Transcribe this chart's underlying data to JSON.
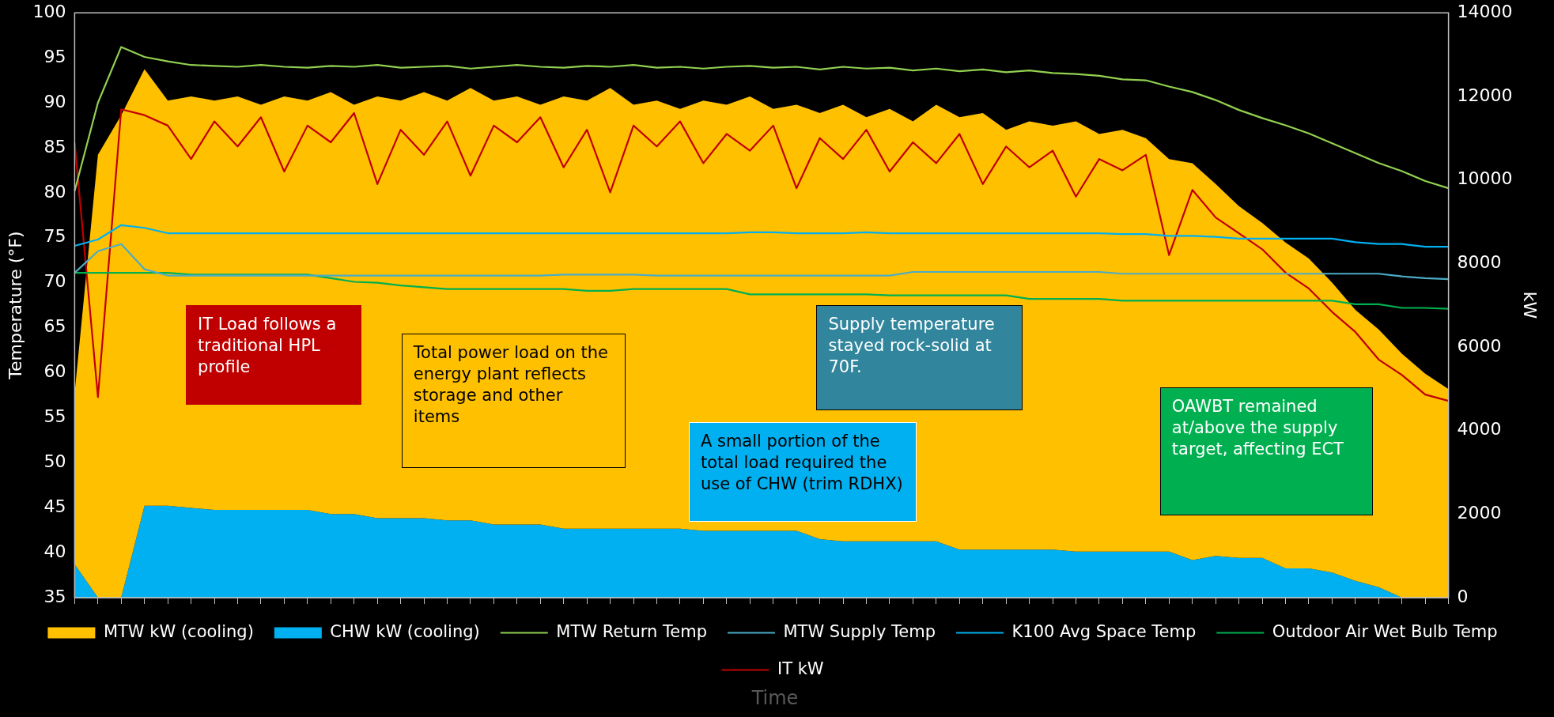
{
  "chart_data": {
    "type": "line",
    "xlabel": "Time",
    "ylabel": "Temperature (°F)",
    "y2label": "kW",
    "categories": [
      null,
      null,
      null,
      null,
      null,
      null,
      null,
      null,
      null,
      null,
      null,
      null,
      null,
      null,
      null,
      null,
      null,
      null,
      null,
      null,
      null,
      null,
      null,
      null,
      null,
      null,
      null,
      null,
      null,
      null,
      null,
      null,
      null,
      null,
      null,
      null,
      null,
      null,
      null,
      null,
      null,
      null,
      null,
      null,
      null,
      null,
      null,
      null,
      null,
      null,
      null,
      null,
      null,
      null,
      null,
      null,
      null,
      null,
      null,
      null
    ],
    "ylim": [
      35,
      100
    ],
    "yticks": [
      35,
      40,
      45,
      50,
      55,
      60,
      65,
      70,
      75,
      80,
      85,
      90,
      95,
      100
    ],
    "y2lim": [
      0,
      14000
    ],
    "y2ticks": [
      0,
      2000,
      4000,
      6000,
      8000,
      10000,
      12000,
      14000
    ],
    "legend": "bottom",
    "tick_labels": "y",
    "series": [
      {
        "name": "MTW kW (cooling)",
        "type": "area",
        "axis": "y2",
        "color": "#ffc000",
        "values": [
          4900,
          10600,
          11550,
          12650,
          11900,
          12000,
          11900,
          12000,
          11800,
          12000,
          11900,
          12100,
          11800,
          12000,
          11900,
          12100,
          11900,
          12200,
          11900,
          12000,
          11800,
          12000,
          11900,
          12200,
          11800,
          11900,
          11700,
          11900,
          11800,
          12000,
          11700,
          11800,
          11600,
          11800,
          11500,
          11700,
          11400,
          11800,
          11500,
          11600,
          11200,
          11400,
          11300,
          11400,
          11100,
          11200,
          11000,
          10500,
          10400,
          9900,
          9370,
          8970,
          8500,
          8120,
          7540,
          6890,
          6420,
          5840,
          5360,
          4990
        ]
      },
      {
        "name": "CHW kW (cooling)",
        "type": "area",
        "axis": "y2",
        "color": "#00b0f0",
        "values": [
          800,
          0,
          0,
          2200,
          2200,
          2150,
          2100,
          2100,
          2100,
          2100,
          2100,
          2000,
          2000,
          1900,
          1900,
          1900,
          1850,
          1850,
          1750,
          1750,
          1750,
          1650,
          1650,
          1650,
          1650,
          1650,
          1650,
          1600,
          1600,
          1600,
          1600,
          1600,
          1400,
          1350,
          1350,
          1350,
          1350,
          1350,
          1150,
          1150,
          1150,
          1150,
          1150,
          1100,
          1100,
          1100,
          1100,
          1100,
          900,
          1000,
          950,
          950,
          700,
          700,
          600,
          400,
          250,
          0,
          0,
          0
        ]
      },
      {
        "name": "MTW Return Temp",
        "type": "line",
        "color": "#92d050",
        "values": [
          80.2,
          90,
          96.2,
          95.1,
          94.6,
          94.2,
          94.1,
          94.0,
          94.2,
          94.0,
          93.9,
          94.1,
          94.0,
          94.2,
          93.9,
          94.0,
          94.1,
          93.8,
          94.0,
          94.2,
          94.0,
          93.9,
          94.1,
          94.0,
          94.2,
          93.9,
          94.0,
          93.8,
          94.0,
          94.1,
          93.9,
          94.0,
          93.7,
          94.0,
          93.8,
          93.9,
          93.6,
          93.8,
          93.5,
          93.7,
          93.4,
          93.6,
          93.3,
          93.2,
          93.0,
          92.6,
          92.5,
          91.8,
          91.2,
          90.3,
          89.2,
          88.3,
          87.5,
          86.6,
          85.5,
          84.4,
          83.3,
          82.4,
          81.3,
          80.5
        ]
      },
      {
        "name": "MTW Supply Temp",
        "type": "line",
        "color": "#4bacc6",
        "values": [
          71.1,
          73.5,
          74.3,
          71.5,
          70.8,
          70.8,
          70.8,
          70.8,
          70.8,
          70.8,
          70.8,
          70.8,
          70.8,
          70.8,
          70.8,
          70.8,
          70.8,
          70.8,
          70.8,
          70.8,
          70.8,
          70.9,
          70.9,
          70.9,
          70.9,
          70.8,
          70.8,
          70.8,
          70.8,
          70.8,
          70.8,
          70.8,
          70.8,
          70.8,
          70.8,
          70.8,
          71.2,
          71.2,
          71.2,
          71.2,
          71.2,
          71.2,
          71.2,
          71.2,
          71.2,
          71.0,
          71.0,
          71.0,
          71.0,
          71.0,
          71.0,
          71.0,
          71.0,
          71.0,
          71.0,
          71.0,
          71.0,
          70.7,
          70.5,
          70.4
        ]
      },
      {
        "name": "K100 Avg Space Temp",
        "type": "line",
        "color": "#00b0f0",
        "values": [
          74.1,
          74.8,
          76.4,
          76.1,
          75.5,
          75.5,
          75.5,
          75.5,
          75.5,
          75.5,
          75.5,
          75.5,
          75.5,
          75.5,
          75.5,
          75.5,
          75.5,
          75.5,
          75.5,
          75.5,
          75.5,
          75.5,
          75.5,
          75.5,
          75.5,
          75.5,
          75.5,
          75.5,
          75.5,
          75.6,
          75.6,
          75.5,
          75.5,
          75.5,
          75.6,
          75.5,
          75.5,
          75.5,
          75.5,
          75.5,
          75.5,
          75.5,
          75.5,
          75.5,
          75.5,
          75.4,
          75.4,
          75.2,
          75.2,
          75.1,
          74.9,
          74.9,
          74.9,
          74.9,
          74.9,
          74.5,
          74.3,
          74.3,
          74.0,
          74.0
        ]
      },
      {
        "name": "Outdoor Air Wet Bulb Temp",
        "type": "line",
        "color": "#00b050",
        "values": [
          71.1,
          71.1,
          71.1,
          71.1,
          71.1,
          70.9,
          70.9,
          70.9,
          70.9,
          70.9,
          70.9,
          70.5,
          70.1,
          70.0,
          69.7,
          69.5,
          69.3,
          69.3,
          69.3,
          69.3,
          69.3,
          69.3,
          69.1,
          69.1,
          69.3,
          69.3,
          69.3,
          69.3,
          69.3,
          68.7,
          68.7,
          68.7,
          68.7,
          68.7,
          68.7,
          68.6,
          68.6,
          68.6,
          68.6,
          68.6,
          68.6,
          68.2,
          68.2,
          68.2,
          68.2,
          68.0,
          68.0,
          68.0,
          68.0,
          68.0,
          68.0,
          68.0,
          68.0,
          68.0,
          68.0,
          67.6,
          67.6,
          67.2,
          67.2,
          67.1
        ]
      },
      {
        "name": "IT kW",
        "type": "line",
        "axis": "y2",
        "color": "#c00000",
        "values": [
          10890,
          4800,
          11690,
          11550,
          11300,
          10500,
          11400,
          10800,
          11500,
          10200,
          11300,
          10900,
          11600,
          9900,
          11200,
          10600,
          11400,
          10100,
          11300,
          10900,
          11500,
          10300,
          11200,
          9700,
          11300,
          10800,
          11400,
          10400,
          11100,
          10700,
          11300,
          9800,
          11000,
          10500,
          11200,
          10200,
          10900,
          10400,
          11100,
          9900,
          10800,
          10300,
          10700,
          9600,
          10500,
          10230,
          10600,
          8200,
          9760,
          9100,
          8720,
          8340,
          7780,
          7400,
          6840,
          6360,
          5700,
          5330,
          4860,
          4710
        ]
      }
    ],
    "annotations": [
      "IT Load follows a traditional HPL profile",
      "Total power load on the energy plant reflects storage and other items",
      "Supply temperature stayed rock-solid at 70F.",
      "A small portion of the total load required the use of CHW (trim RDHX)",
      "OAWBT remained at/above the supply target, affecting ECT"
    ]
  }
}
